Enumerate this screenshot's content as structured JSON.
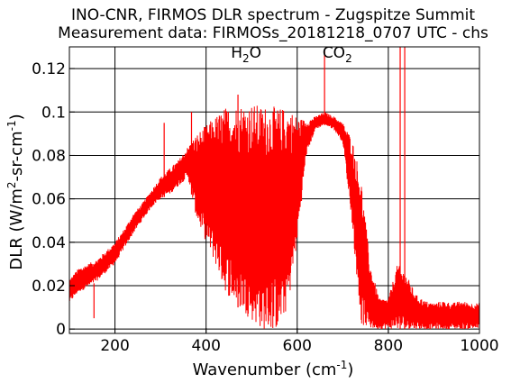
{
  "chart_data": {
    "type": "line",
    "title": "INO-CNR, FIRMOS DLR spectrum - Zugspitze Summit",
    "subtitle": "Measurement data: FIRMOSs_20181218_0707 UTC - chs",
    "xlabel": {
      "main": "Wavenumber (cm",
      "sup": "-1",
      "tail": ")"
    },
    "ylabel": {
      "p1": "DLR (W/m",
      "s1": "2",
      "p2": "-sr-cm",
      "s2": "-1",
      "p3": ")"
    },
    "xlim": [
      100,
      1000
    ],
    "ylim": [
      -0.002,
      0.13
    ],
    "xticks": [
      200,
      400,
      600,
      800,
      1000
    ],
    "xtick_labels": [
      "200",
      "400",
      "600",
      "800",
      "1000"
    ],
    "yticks": [
      0,
      0.02,
      0.04,
      0.06,
      0.08,
      0.1,
      0.12
    ],
    "ytick_labels": [
      "0",
      "0.02",
      "0.04",
      "0.06",
      "0.08",
      "0.1",
      "0.12"
    ],
    "grid": true,
    "annotations": [
      {
        "main": "H",
        "sub": "2",
        "tail": "O",
        "x": 488,
        "y": 0.125
      },
      {
        "main": "CO",
        "sub": "2",
        "tail": "",
        "x": 688,
        "y": 0.125
      }
    ],
    "series": [
      {
        "color": "#ff0000",
        "envelope": [
          [
            100,
            0.012,
            0.023
          ],
          [
            120,
            0.017,
            0.028
          ],
          [
            140,
            0.019,
            0.03
          ],
          [
            160,
            0.022,
            0.032
          ],
          [
            180,
            0.026,
            0.036
          ],
          [
            200,
            0.03,
            0.04
          ],
          [
            220,
            0.037,
            0.046
          ],
          [
            240,
            0.044,
            0.053
          ],
          [
            260,
            0.05,
            0.058
          ],
          [
            280,
            0.056,
            0.064
          ],
          [
            300,
            0.06,
            0.07
          ],
          [
            320,
            0.062,
            0.074
          ],
          [
            340,
            0.066,
            0.078
          ],
          [
            360,
            0.07,
            0.084
          ],
          [
            380,
            0.05,
            0.09
          ],
          [
            400,
            0.04,
            0.094
          ],
          [
            420,
            0.03,
            0.098
          ],
          [
            440,
            0.018,
            0.102
          ],
          [
            460,
            0.012,
            0.103
          ],
          [
            480,
            0.008,
            0.104
          ],
          [
            500,
            0.004,
            0.104
          ],
          [
            520,
            0.0,
            0.103
          ],
          [
            540,
            -0.001,
            0.103
          ],
          [
            560,
            0.0,
            0.102
          ],
          [
            580,
            0.01,
            0.102
          ],
          [
            600,
            0.04,
            0.098
          ],
          [
            620,
            0.08,
            0.096
          ],
          [
            640,
            0.092,
            0.098
          ],
          [
            660,
            0.094,
            0.1
          ],
          [
            680,
            0.092,
            0.098
          ],
          [
            700,
            0.086,
            0.095
          ],
          [
            720,
            0.05,
            0.088
          ],
          [
            740,
            0.002,
            0.07
          ],
          [
            760,
            0.0,
            0.03
          ],
          [
            780,
            0.0,
            0.014
          ],
          [
            800,
            0.0,
            0.014
          ],
          [
            820,
            0.0,
            0.03
          ],
          [
            840,
            0.0,
            0.025
          ],
          [
            860,
            0.0,
            0.016
          ],
          [
            880,
            0.0,
            0.013
          ],
          [
            900,
            0.0,
            0.012
          ],
          [
            920,
            0.0,
            0.013
          ],
          [
            940,
            0.0,
            0.012
          ],
          [
            960,
            0.0,
            0.013
          ],
          [
            980,
            0.0,
            0.012
          ],
          [
            1000,
            0.0,
            0.012
          ]
        ],
        "spikes": [
          [
            154,
            0.005
          ],
          [
            308,
            0.095
          ],
          [
            368,
            0.1
          ],
          [
            470,
            0.108
          ],
          [
            660,
            0.128
          ],
          [
            826,
            0.13
          ],
          [
            836,
            0.13
          ]
        ]
      }
    ]
  }
}
